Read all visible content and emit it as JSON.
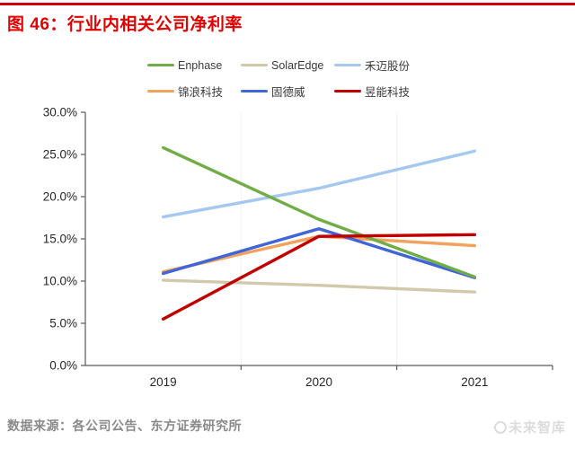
{
  "page": {
    "title": "图 46：行业内相关公司净利率",
    "source": "数据来源：各公司公告、东方证券研究所",
    "watermark": "未来智库",
    "accent_color": "#e10000"
  },
  "chart_data": {
    "type": "line",
    "title": "行业内相关公司净利率",
    "x": [
      "2019",
      "2020",
      "2021"
    ],
    "xlabel": "",
    "ylabel": "",
    "y_unit": "%",
    "ylim": [
      0,
      30
    ],
    "y_tick_step": 5,
    "y_tick_labels": [
      "0.0%",
      "5.0%",
      "10.0%",
      "15.0%",
      "20.0%",
      "25.0%",
      "30.0%"
    ],
    "grid": "faint vertical lines at category boundaries",
    "legend_position": "top-center, two rows",
    "axis_color": "#595959",
    "tick_label_color": "#262626",
    "series": [
      {
        "name": "Enphase",
        "slug": "enphase",
        "color": "#70AD47",
        "values": [
          25.8,
          17.3,
          10.5
        ]
      },
      {
        "name": "SolarEdge",
        "slug": "solaredge",
        "color": "#D2C9AC",
        "values": [
          10.1,
          9.5,
          8.7
        ]
      },
      {
        "name": "禾迈股份",
        "slug": "hemai",
        "color": "#A5C8F0",
        "values": [
          17.6,
          21.0,
          25.4
        ]
      },
      {
        "name": "锦浪科技",
        "slug": "jinlang",
        "color": "#F2A25C",
        "values": [
          11.1,
          15.3,
          14.2
        ]
      },
      {
        "name": "固德威",
        "slug": "goodwe",
        "color": "#4065D8",
        "values": [
          10.9,
          16.2,
          10.4
        ]
      },
      {
        "name": "昱能科技",
        "slug": "yuneng",
        "color": "#C00000",
        "values": [
          5.5,
          15.3,
          15.5
        ]
      }
    ]
  }
}
